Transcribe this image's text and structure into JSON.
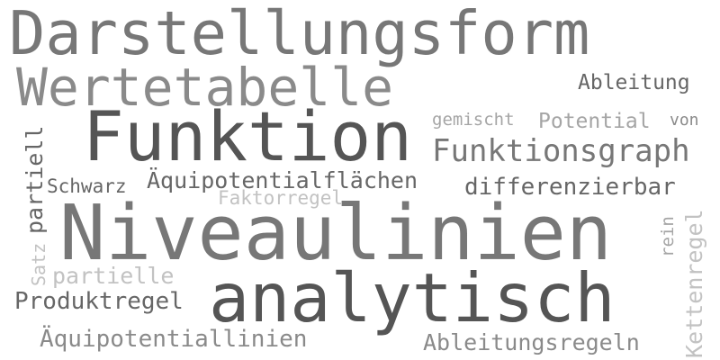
{
  "colors": {
    "background": "#ffffff",
    "gray_darkest": "#555555",
    "gray_dark": "#666666",
    "gray_mid": "#777777",
    "gray_light": "#8a8a8a",
    "gray_lighter": "#a5a5a5",
    "gray_faint": "#c2c2c2"
  },
  "words": [
    {
      "id": "darstellungsform",
      "text": "Darstellungsform"
    },
    {
      "id": "wertetabelle",
      "text": "Wertetabelle"
    },
    {
      "id": "ableitung",
      "text": "Ableitung"
    },
    {
      "id": "gemischt",
      "text": "gemischt"
    },
    {
      "id": "potential",
      "text": "Potential"
    },
    {
      "id": "von",
      "text": "von"
    },
    {
      "id": "funktion",
      "text": "Funktion"
    },
    {
      "id": "funktionsgraph",
      "text": "Funktionsgraph"
    },
    {
      "id": "partiell",
      "text": "partiell"
    },
    {
      "id": "schwarz",
      "text": "Schwarz"
    },
    {
      "id": "aequipotentialflaechen",
      "text": "Äquipotentialflächen"
    },
    {
      "id": "differenzierbar",
      "text": "differenzierbar"
    },
    {
      "id": "faktorregel",
      "text": "Faktorregel"
    },
    {
      "id": "niveaulinien",
      "text": "Niveaulinien"
    },
    {
      "id": "rein",
      "text": "rein"
    },
    {
      "id": "satz",
      "text": "Satz"
    },
    {
      "id": "partielle",
      "text": "partielle"
    },
    {
      "id": "kettenregel",
      "text": "Kettenregel"
    },
    {
      "id": "produktregel",
      "text": "Produktregel"
    },
    {
      "id": "analytisch",
      "text": "analytisch"
    },
    {
      "id": "aequipotentiallinien",
      "text": "Äquipotentiallinien"
    },
    {
      "id": "ableitungsregeln",
      "text": "Ableitungsregeln"
    }
  ]
}
